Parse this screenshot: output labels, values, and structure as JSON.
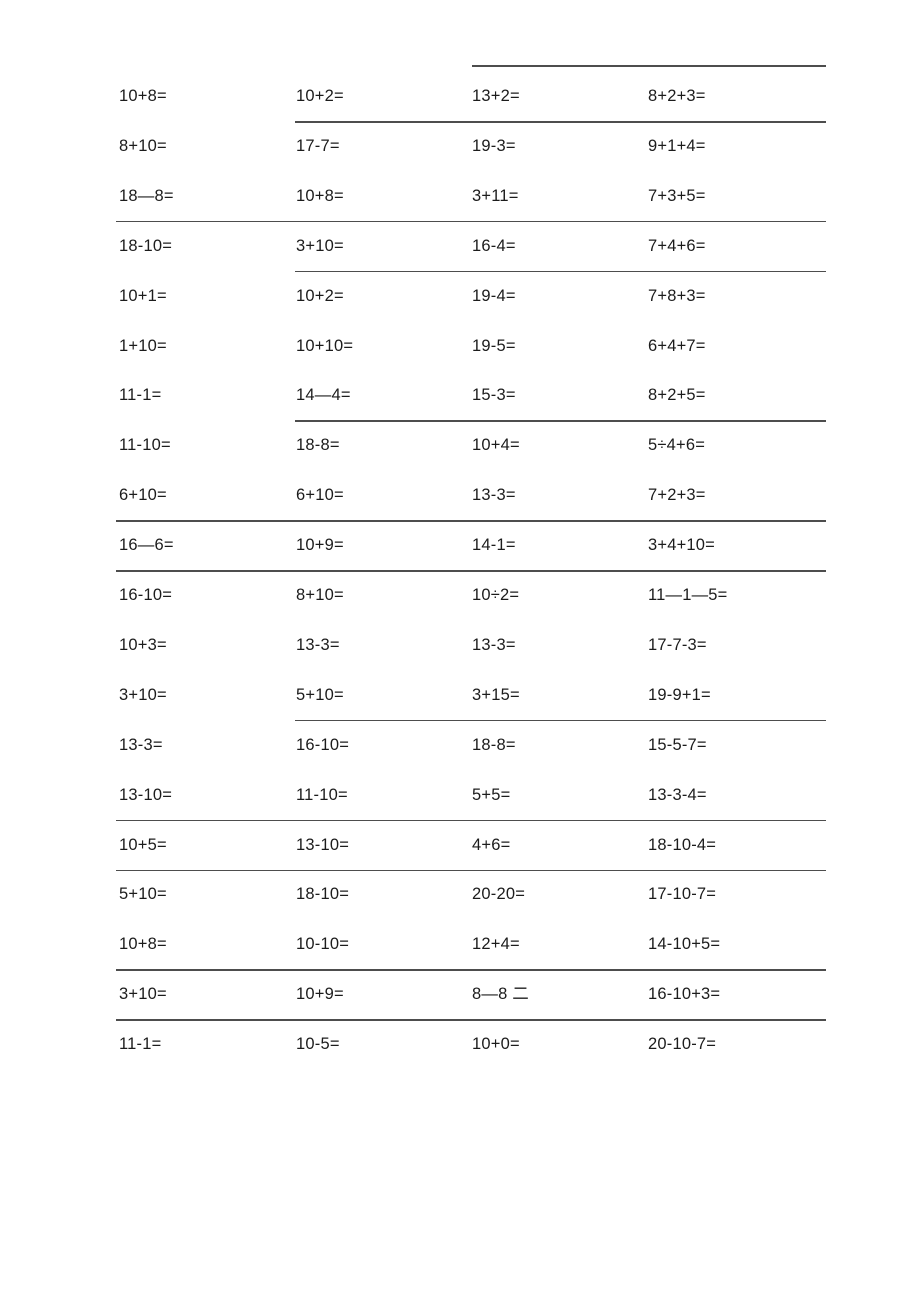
{
  "page": {
    "background_color": "#ffffff",
    "text_color": "#1c1c1c",
    "rule_color": "#4d4d4d"
  },
  "worksheet": {
    "columns": 4,
    "rows": [
      {
        "cells": [
          "10+8=",
          "10+2=",
          "13+2=",
          "8+2+3="
        ],
        "rule_above": "col3",
        "rule_below": "col2"
      },
      {
        "cells": [
          "8+10=",
          "17-7=",
          "19-3=",
          "9+1+4="
        ],
        "rule_above": null,
        "rule_below": null
      },
      {
        "cells": [
          "18—8=",
          "10+8=",
          "3+11=",
          "7+3+5="
        ],
        "rule_above": null,
        "rule_below": "full"
      },
      {
        "cells": [
          "18-10=",
          "3+10=",
          "16-4=",
          "7+4+6="
        ],
        "rule_above": null,
        "rule_below": "col2"
      },
      {
        "cells": [
          "10+1=",
          "10+2=",
          "19-4=",
          "7+8+3="
        ],
        "rule_above": null,
        "rule_below": null
      },
      {
        "cells": [
          "1+10=",
          "10+10=",
          "19-5=",
          "6+4+7="
        ],
        "rule_above": null,
        "rule_below": null
      },
      {
        "cells": [
          "11-1=",
          "14—4=",
          "15-3=",
          "8+2+5="
        ],
        "rule_above": null,
        "rule_below": "col2"
      },
      {
        "cells": [
          "11-10=",
          "18-8=",
          "10+4=",
          "5÷4+6="
        ],
        "rule_above": null,
        "rule_below": null
      },
      {
        "cells": [
          "6+10=",
          "6+10=",
          "13-3=",
          "7+2+3="
        ],
        "rule_above": null,
        "rule_below": "full"
      },
      {
        "cells": [
          "16—6=",
          "10+9=",
          "14-1=",
          "3+4+10="
        ],
        "rule_above": null,
        "rule_below": "full"
      },
      {
        "cells": [
          "16-10=",
          "8+10=",
          "10÷2=",
          "11—1—5="
        ],
        "rule_above": null,
        "rule_below": null
      },
      {
        "cells": [
          "10+3=",
          "13-3=",
          "13-3=",
          "17-7-3="
        ],
        "rule_above": null,
        "rule_below": null
      },
      {
        "cells": [
          "3+10=",
          "5+10=",
          "3+15=",
          "19-9+1="
        ],
        "rule_above": null,
        "rule_below": "col2"
      },
      {
        "cells": [
          "13-3=",
          "16-10=",
          "18-8=",
          "15-5-7="
        ],
        "rule_above": null,
        "rule_below": null
      },
      {
        "cells": [
          "13-10=",
          "11-10=",
          "5+5=",
          "13-3-4="
        ],
        "rule_above": null,
        "rule_below": "full"
      },
      {
        "cells": [
          "10+5=",
          "13-10=",
          "4+6=",
          "18-10-4="
        ],
        "rule_above": null,
        "rule_below": "full"
      },
      {
        "cells": [
          "5+10=",
          "18-10=",
          "20-20=",
          "17-10-7="
        ],
        "rule_above": null,
        "rule_below": null
      },
      {
        "cells": [
          "10+8=",
          "10-10=",
          "12+4=",
          "14-10+5="
        ],
        "rule_above": null,
        "rule_below": "full"
      },
      {
        "cells": [
          "3+10=",
          "10+9=",
          "8—8 二",
          "16-10+3="
        ],
        "rule_above": null,
        "rule_below": "full"
      },
      {
        "cells": [
          "11-1=",
          "10-5=",
          "10+0=",
          "20-10-7="
        ],
        "rule_above": null,
        "rule_below": null
      }
    ]
  }
}
